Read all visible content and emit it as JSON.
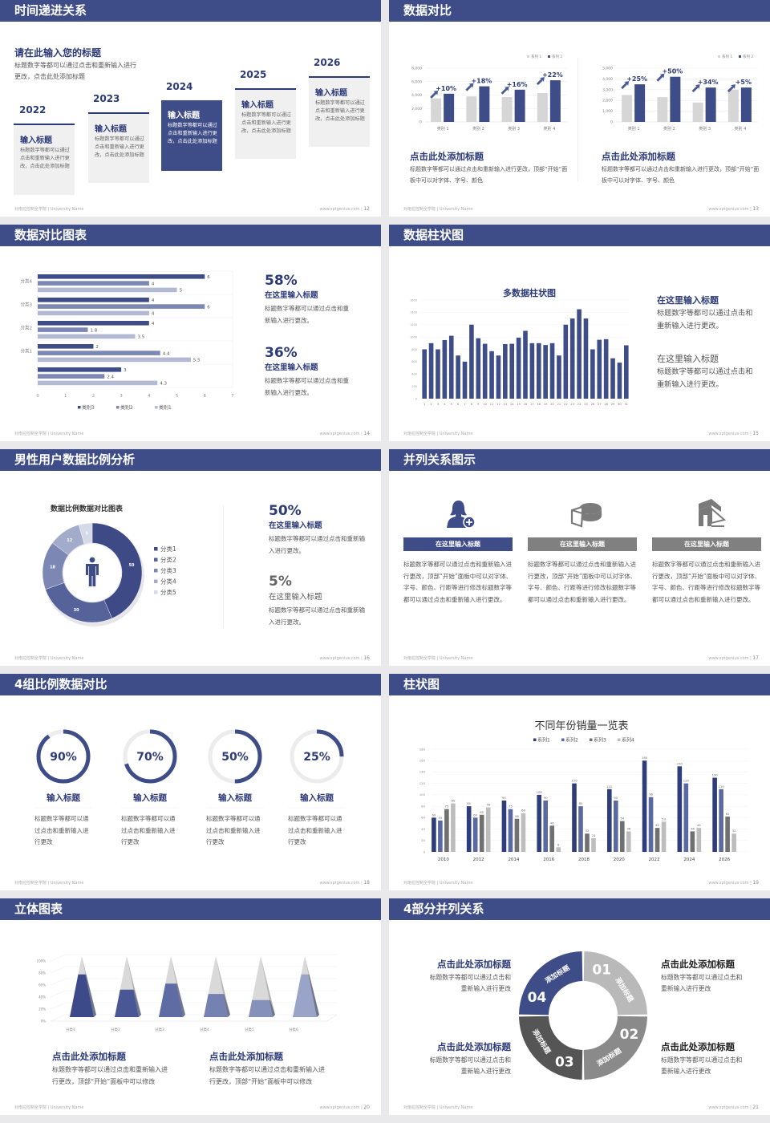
{
  "theme": {
    "navy": "#3e4d87",
    "title_blue": "#2c3a78",
    "gray": "#808080",
    "light_gray": "#d4d4d4"
  },
  "footer": {
    "school": "对南拉控制全学院 | University Name",
    "site": "www.sptgenius.com | "
  },
  "slides": {
    "s12": {
      "title": "时间递进关系",
      "page": "12",
      "heading": "请在此输入您的标题",
      "desc": "标题数字等都可以通过点击和重新输入进行更改，点击此处添加标题",
      "cards": [
        {
          "year": "2022",
          "title": "输入标题",
          "text": "标题数字等都可以通过点击和重新输入进行更改，点击此处添加标题"
        },
        {
          "year": "2023",
          "title": "输入标题",
          "text": "标题数字等都可以通过点击和重新输入进行更改，点击此处添加标题"
        },
        {
          "year": "2024",
          "title": "输入标题",
          "text": "标题数字等都可以通过点击和重新输入进行更改，点击此处添加标题"
        },
        {
          "year": "2025",
          "title": "输入标题",
          "text": "标题数字等都可以通过点击和重新输入进行更改，点击此处添加标题"
        },
        {
          "year": "2026",
          "title": "输入标题",
          "text": "标题数字等都可以通过点击和重新输入进行更改，点击此处添加标题"
        }
      ]
    },
    "s13": {
      "title": "数据对比",
      "page": "13",
      "charts": [
        {
          "type": "bar",
          "legend": [
            "系列 1",
            "系列 2"
          ],
          "categories": [
            "类别 1",
            "类别 2",
            "类别 3",
            "类别 4"
          ],
          "yticks": [
            "0",
            "2,000",
            "4,000",
            "6,000",
            "8,000"
          ],
          "ylim": [
            0,
            8000
          ],
          "series1": [
            3500,
            3800,
            3700,
            4300
          ],
          "series2": [
            4200,
            5300,
            4800,
            6200
          ],
          "growth": [
            "+10%",
            "+18%",
            "+16%",
            "+22%"
          ]
        },
        {
          "type": "bar",
          "legend": [
            "系列 1",
            "系列 2"
          ],
          "categories": [
            "类别 1",
            "类别 2",
            "类别 3",
            "类别 4"
          ],
          "yticks": [
            "0",
            "1,000",
            "2,000",
            "3,000",
            "4,000",
            "5,000"
          ],
          "ylim": [
            0,
            5000
          ],
          "series1": [
            2500,
            2300,
            1800,
            3000
          ],
          "series2": [
            3500,
            4200,
            3200,
            3200
          ],
          "growth": [
            "+25%",
            "+50%",
            "+34%",
            "+5%"
          ]
        }
      ],
      "captions": [
        {
          "title": "点击此处添加标题",
          "text": "标题数字等都可以通过点击和重新输入进行更改，顶部“开始”面板中可以对字体、字号、颜色"
        },
        {
          "title": "点击此处添加标题",
          "text": "标题数字等都可以通过点击和重新输入进行更改，顶部“开始”面板中可以对字体、字号、颜色"
        }
      ]
    },
    "s14": {
      "title": "数据对比图表",
      "page": "14",
      "chart": {
        "type": "bar-horizontal",
        "legend": [
          "类别3",
          "类别2",
          "类别1"
        ],
        "xticks": [
          "0",
          "1",
          "2",
          "3",
          "4",
          "5",
          "6",
          "7"
        ],
        "xlim": [
          0,
          7
        ],
        "groups": [
          {
            "label": "分类4",
            "values": [
              6,
              4,
              5
            ]
          },
          {
            "label": "分类3",
            "values": [
              4,
              6,
              4
            ]
          },
          {
            "label": "分类2",
            "values": [
              4,
              1.8,
              3.5
            ]
          },
          {
            "label": "分类1",
            "values": [
              2,
              4.4,
              5.5
            ]
          },
          {
            "label": "",
            "values": [
              3,
              2.4,
              4.3
            ]
          }
        ]
      },
      "stats": [
        {
          "value": "58%",
          "title": "在这里输入标题",
          "text": "标题数字等都可以通过点击和重新输入进行更改。"
        },
        {
          "value": "36%",
          "title": "在这里输入标题",
          "text": "标题数字等都可以通过点击和重新输入进行更改。"
        }
      ]
    },
    "s15": {
      "title": "数据柱状图",
      "page": "15",
      "chart": {
        "type": "bar",
        "title": "多数据柱状图",
        "yticks": [
          "0",
          "200",
          "400",
          "600",
          "800",
          "1000",
          "1200",
          "1400",
          "1600"
        ],
        "ylim": [
          0,
          1600
        ],
        "categories": [
          "1",
          "2",
          "3",
          "4",
          "5",
          "6",
          "7",
          "8",
          "9",
          "10",
          "11",
          "12",
          "13",
          "14",
          "15",
          "16",
          "17",
          "18",
          "19",
          "20",
          "21",
          "22",
          "23",
          "24",
          "25",
          "26",
          "27",
          "28",
          "29",
          "30",
          "31"
        ],
        "values": [
          800,
          900,
          800,
          950,
          1020,
          700,
          600,
          1200,
          980,
          890,
          770,
          700,
          885,
          890,
          990,
          1100,
          900,
          900,
          870,
          900,
          700,
          1200,
          1300,
          1450,
          1300,
          800,
          955,
          965,
          655,
          585,
          865
        ]
      },
      "blocks": [
        {
          "title": "在这里输入标题",
          "text": "标题数字等都可以通过点击和重新输入进行更改。"
        },
        {
          "title": "在这里输入标题",
          "text": "标题数字等都可以通过点击和重新输入进行更改。"
        }
      ]
    },
    "s16": {
      "title": "男性用户数据比例分析",
      "page": "16",
      "chart": {
        "type": "pie",
        "title": "数据比例数据对比图表",
        "labels": [
          "分类1",
          "分类2",
          "分类3",
          "分类4",
          "分类5"
        ],
        "values": [
          50,
          30,
          18,
          12,
          5
        ],
        "colors": [
          "#3d4a86",
          "#56639b",
          "#7c87b3",
          "#a3abcb",
          "#d5d9e8"
        ]
      },
      "stats": [
        {
          "value": "50%",
          "title": "在这里输入标题",
          "text": "标题数字等都可以通过点击和重新输入进行更改。"
        },
        {
          "value": "5%",
          "title": "在这里输入标题",
          "text": "标题数字等都可以通过点击和重新输入进行更改。"
        }
      ]
    },
    "s17": {
      "title": "并列关系图示",
      "page": "17",
      "items": [
        {
          "icon": "user-add-icon",
          "label": "在这里输入标题",
          "text": "标题数字等都可以通过点击和重新输入进行更改，顶部“开始”面板中可以对字体、字号、颜色、行距等进行修改标题数字等都可以通过点击和重新输入进行更改。"
        },
        {
          "icon": "pie-chart-icon",
          "label": "在这里输入标题",
          "text": "标题数字等都可以通过点击和重新输入进行更改，顶部“开始”面板中可以对字体、字号、颜色、行距等进行修改标题数字等都可以通过点击和重新输入进行更改。"
        },
        {
          "icon": "building-icon",
          "label": "在这里输入标题",
          "text": "标题数字等都可以通过点击和重新输入进行更改，顶部“开始”面板中可以对字体、字号、颜色、行距等进行修改标题数字等都可以通过点击和重新输入进行更改。"
        }
      ]
    },
    "s18": {
      "title": "4组比例数据对比",
      "page": "18",
      "rings": [
        {
          "percent": 90,
          "label": "90%",
          "title": "输入标题",
          "text": "标题数字等都可以通过点击和重新输入进行更改"
        },
        {
          "percent": 70,
          "label": "70%",
          "title": "输入标题",
          "text": "标题数字等都可以通过点击和重新输入进行更改"
        },
        {
          "percent": 50,
          "label": "50%",
          "title": "输入标题",
          "text": "标题数字等都可以通过点击和重新输入进行更改"
        },
        {
          "percent": 25,
          "label": "25%",
          "title": "输入标题",
          "text": "标题数字等都可以通过点击和重新输入进行更改"
        }
      ]
    },
    "s19": {
      "title": "柱状图",
      "page": "19",
      "chart": {
        "type": "bar",
        "title": "不同年份销量一览表",
        "yticks": [
          "0",
          "20",
          "40",
          "60",
          "80",
          "100",
          "120",
          "140",
          "160",
          "180"
        ],
        "ylim": [
          0,
          180
        ],
        "categories": [
          "2010",
          "2012",
          "2014",
          "2016",
          "2018",
          "2020",
          "2022",
          "2024",
          "2026"
        ],
        "series": [
          {
            "name": "系列1",
            "color": "#2f3d7a",
            "values": [
              60,
              80,
              90,
              100,
              120,
              110,
              160,
              150,
              130
            ]
          },
          {
            "name": "系列2",
            "color": "#5a6aa0",
            "values": [
              55,
              60,
              75,
              90,
              80,
              90,
              96,
              120,
              110
            ]
          },
          {
            "name": "系列3",
            "color": "#707070",
            "values": [
              75,
              65,
              58,
              46,
              32,
              54,
              42,
              36,
              62
            ]
          },
          {
            "name": "系列4",
            "color": "#bdbdbd",
            "values": [
              85,
              78,
              68,
              8,
              24,
              36,
              53,
              42,
              32
            ]
          }
        ]
      }
    },
    "s20": {
      "title": "立体图表",
      "page": "20",
      "chart": {
        "type": "bar-3d-pyramid",
        "yticks": [
          "0%",
          "20%",
          "40%",
          "60%",
          "80%",
          "100%"
        ],
        "ylim": [
          0,
          100
        ],
        "categories": [
          "分类1",
          "分类2",
          "分类3",
          "分类4",
          "分类5",
          "分类6"
        ],
        "values": [
          70,
          45,
          55,
          38,
          28,
          70
        ],
        "colors": [
          "#3d4a8a",
          "#4a5795",
          "#5f6ca3",
          "#7581b0",
          "#8590bb",
          "#9aa3c8"
        ]
      },
      "captions": [
        {
          "title": "点击此处添加标题",
          "text": "标题数字等都可以通过点击和重新输入进行更改，顶部“开始”面板中可以修改"
        },
        {
          "title": "点击此处添加标题",
          "text": "标题数字等都可以通过点击和重新输入进行更改，顶部“开始”面板中可以修改"
        }
      ]
    },
    "s21": {
      "title": "4部分并列关系",
      "page": "21",
      "segments": [
        {
          "num": "01",
          "label": "添加标题",
          "color": "#b9b9b9"
        },
        {
          "num": "02",
          "label": "添加标题",
          "color": "#8a8a8a"
        },
        {
          "num": "03",
          "label": "添加标题",
          "color": "#555555"
        },
        {
          "num": "04",
          "label": "添加标题",
          "color": "#3e4d87"
        }
      ],
      "blocks": [
        {
          "title": "点击此处添加标题",
          "text": "标题数字等都可以通过点击和重新输入进行更改"
        },
        {
          "title": "点击此处添加标题",
          "text": "标题数字等都可以通过点击和重新输入进行更改"
        },
        {
          "title": "点击此处添加标题",
          "text": "标题数字等都可以通过点击和重新输入进行更改"
        },
        {
          "title": "点击此处添加标题",
          "text": "标题数字等都可以通过点击和重新输入进行更改"
        }
      ]
    }
  }
}
